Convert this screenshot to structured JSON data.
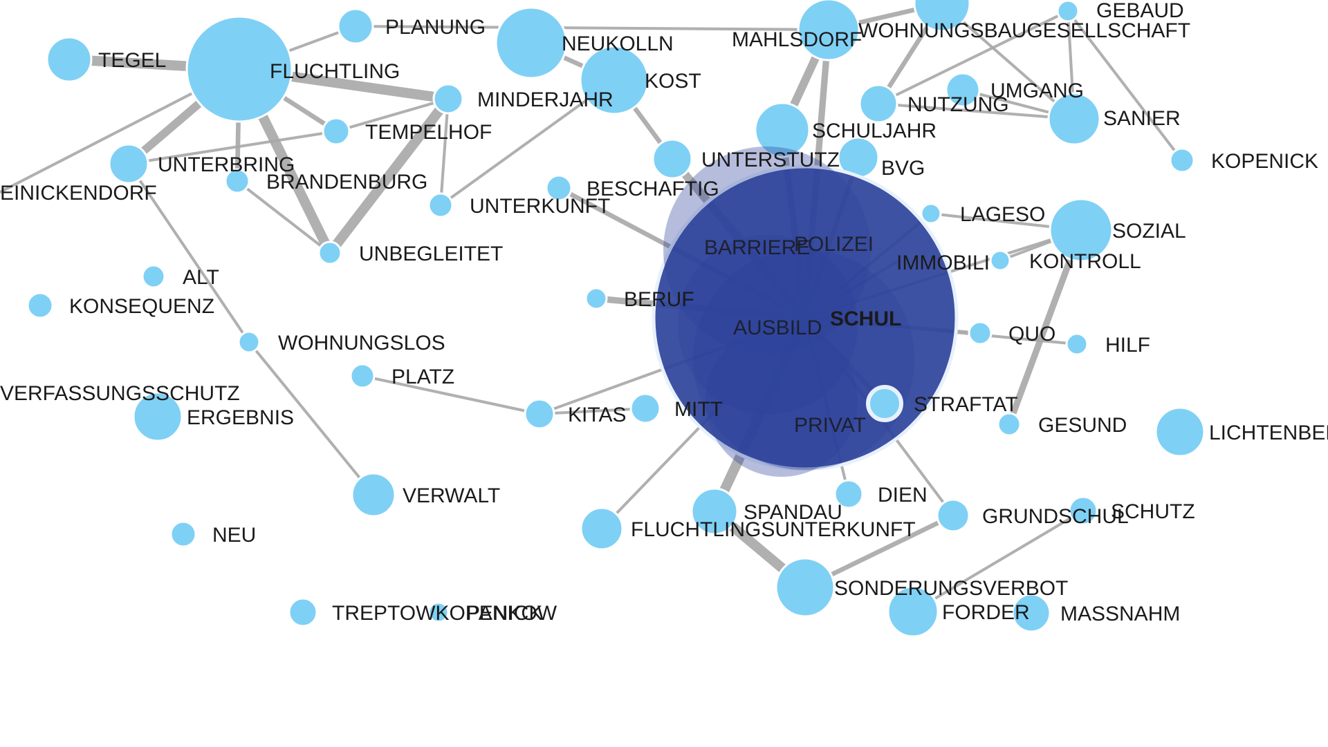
{
  "graph": {
    "colors": {
      "node": "#7fd0f5",
      "selected_node": "#2e439c",
      "selected_label": "#111111",
      "edge": "#a8a8a8",
      "highlight_ring": "#e8f1fb",
      "background": "#ffffff"
    },
    "selected": "SCHUL",
    "nodes": [
      "TEGEL",
      "PLANUNG",
      "FLUCHTLING",
      "NEUKOLLN",
      "MAHLSDORF",
      "WOHNUNGSBAUGESELLSCHAFT",
      "GEBAUD",
      "MINDERJAHR",
      "KOST",
      "NUTZUNG",
      "UMGANG",
      "SANIER",
      "TEMPELHOF",
      "SCHULJAHR",
      "UNTERBRING",
      "BRANDENBURG",
      "UNTERSTUTZ",
      "BVG",
      "KOPENICK",
      "EINICKENDORF",
      "BESCHAFTIG",
      "UNTERKUNFT",
      "LAGESO",
      "SOZIAL",
      "UNBEGLEITET",
      "POLIZEI",
      "BARRIERE",
      "IMMOBILI",
      "KONTROLL",
      "ALT",
      "KONSEQUENZ",
      "BERUF",
      "AUSBILD",
      "SCHUL",
      "QUO",
      "HILF",
      "WOHNUNGSLOS",
      "PLATZ",
      "VERFASSUNGSSCHUTZ",
      "ERGEBNIS",
      "KITAS",
      "MITT",
      "STRAFTAT",
      "PRIVAT",
      "GESUND",
      "LICHTENBERG",
      "VERWALT",
      "DIEN",
      "GRUNDSCHUL",
      "SCHUTZ",
      "SPANDAU",
      "FLUCHTLINGSUNTERKUNFT",
      "NEU",
      "SONDERUNGSVERBOT",
      "TREPTOWKOPENICK",
      "PANKOW",
      "FORDER",
      "MASSNAHM"
    ],
    "edges": [
      [
        "TEGEL",
        "FLUCHTLING",
        5
      ],
      [
        "FLUCHTLING",
        "MINDERJAHR",
        5
      ],
      [
        "FLUCHTLING",
        "UNBEGLEITET",
        5
      ],
      [
        "FLUCHTLING",
        "UNTERBRING",
        4
      ],
      [
        "FLUCHTLING",
        "TEMPELHOF",
        2
      ],
      [
        "FLUCHTLING",
        "BRANDENBURG",
        2
      ],
      [
        "FLUCHTLING",
        "PLANUNG",
        1
      ],
      [
        "FLUCHTLING",
        "EINICKENDORF",
        1
      ],
      [
        "MINDERJAHR",
        "UNBEGLEITET",
        5
      ],
      [
        "MINDERJAHR",
        "UNTERKUNFT",
        1
      ],
      [
        "MINDERJAHR",
        "TEMPELHOF",
        1
      ],
      [
        "UNTERBRING",
        "TEMPELHOF",
        1
      ],
      [
        "UNTERBRING",
        "WOHNUNGSLOS",
        1
      ],
      [
        "WOHNUNGSLOS",
        "VERWALT",
        1
      ],
      [
        "UNBEGLEITET",
        "BRANDENBURG",
        1
      ],
      [
        "PLATZ",
        "KITAS",
        1
      ],
      [
        "KITAS",
        "MITT",
        1
      ],
      [
        "NEUKOLLN",
        "KOST",
        2
      ],
      [
        "KOST",
        "UNTERSTUTZ",
        2
      ],
      [
        "KOST",
        "UNTERKUNFT",
        1
      ],
      [
        "UNTERSTUTZ",
        "SCHUL",
        4
      ],
      [
        "MAHLSDORF",
        "SCHULJAHR",
        4
      ],
      [
        "MAHLSDORF",
        "SCHUL",
        3
      ],
      [
        "SCHULJAHR",
        "SCHUL",
        3
      ],
      [
        "BVG",
        "SCHUL",
        2
      ],
      [
        "WOHNUNGSBAUGESELLSCHAFT",
        "NUTZUNG",
        2
      ],
      [
        "NUTZUNG",
        "SANIER",
        1
      ],
      [
        "UMGANG",
        "SANIER",
        1
      ],
      [
        "GEBAUD",
        "SANIER",
        1
      ],
      [
        "WOHNUNGSBAUGESELLSCHAFT",
        "SANIER",
        1
      ],
      [
        "SOZIAL",
        "LAGESO",
        1
      ],
      [
        "SOZIAL",
        "KONTROLL",
        1
      ],
      [
        "SOZIAL",
        "GESUND",
        3
      ],
      [
        "SOZIAL",
        "SCHUL",
        1
      ],
      [
        "HILF",
        "SCHUL",
        1
      ],
      [
        "QUO",
        "SCHUL",
        1
      ],
      [
        "STRAFTAT",
        "SCHUL",
        2
      ],
      [
        "BESCHAFTIG",
        "SCHUL",
        2
      ],
      [
        "BERUF",
        "SCHUL",
        3
      ],
      [
        "SCHUL",
        "SPANDAU",
        5
      ],
      [
        "SPANDAU",
        "SONDERUNGSVERBOT",
        5
      ],
      [
        "SONDERUNGSVERBOT",
        "GRUNDSCHUL",
        2
      ],
      [
        "SCHUL",
        "GRUNDSCHUL",
        1
      ],
      [
        "SCHUL",
        "FLUCHTLINGSUNTERKUNFT",
        1
      ],
      [
        "SCHUL",
        "DIEN",
        1
      ],
      [
        "FORDER",
        "SCHUTZ",
        1
      ],
      [
        "KITAS",
        "SCHUL",
        1
      ],
      [
        "LAGESO",
        "SCHUL",
        1
      ],
      [
        "IMMOBILI",
        "SCHUL",
        1
      ],
      [
        "MAHLSDORF",
        "PLANUNG",
        1
      ],
      [
        "MAHLSDORF",
        "WOHNUNGSBAUGESELLSCHAFT",
        2
      ],
      [
        "GEBAUD",
        "NUTZUNG",
        1
      ],
      [
        "KOPENICK",
        "GEBAUD",
        1
      ]
    ]
  }
}
